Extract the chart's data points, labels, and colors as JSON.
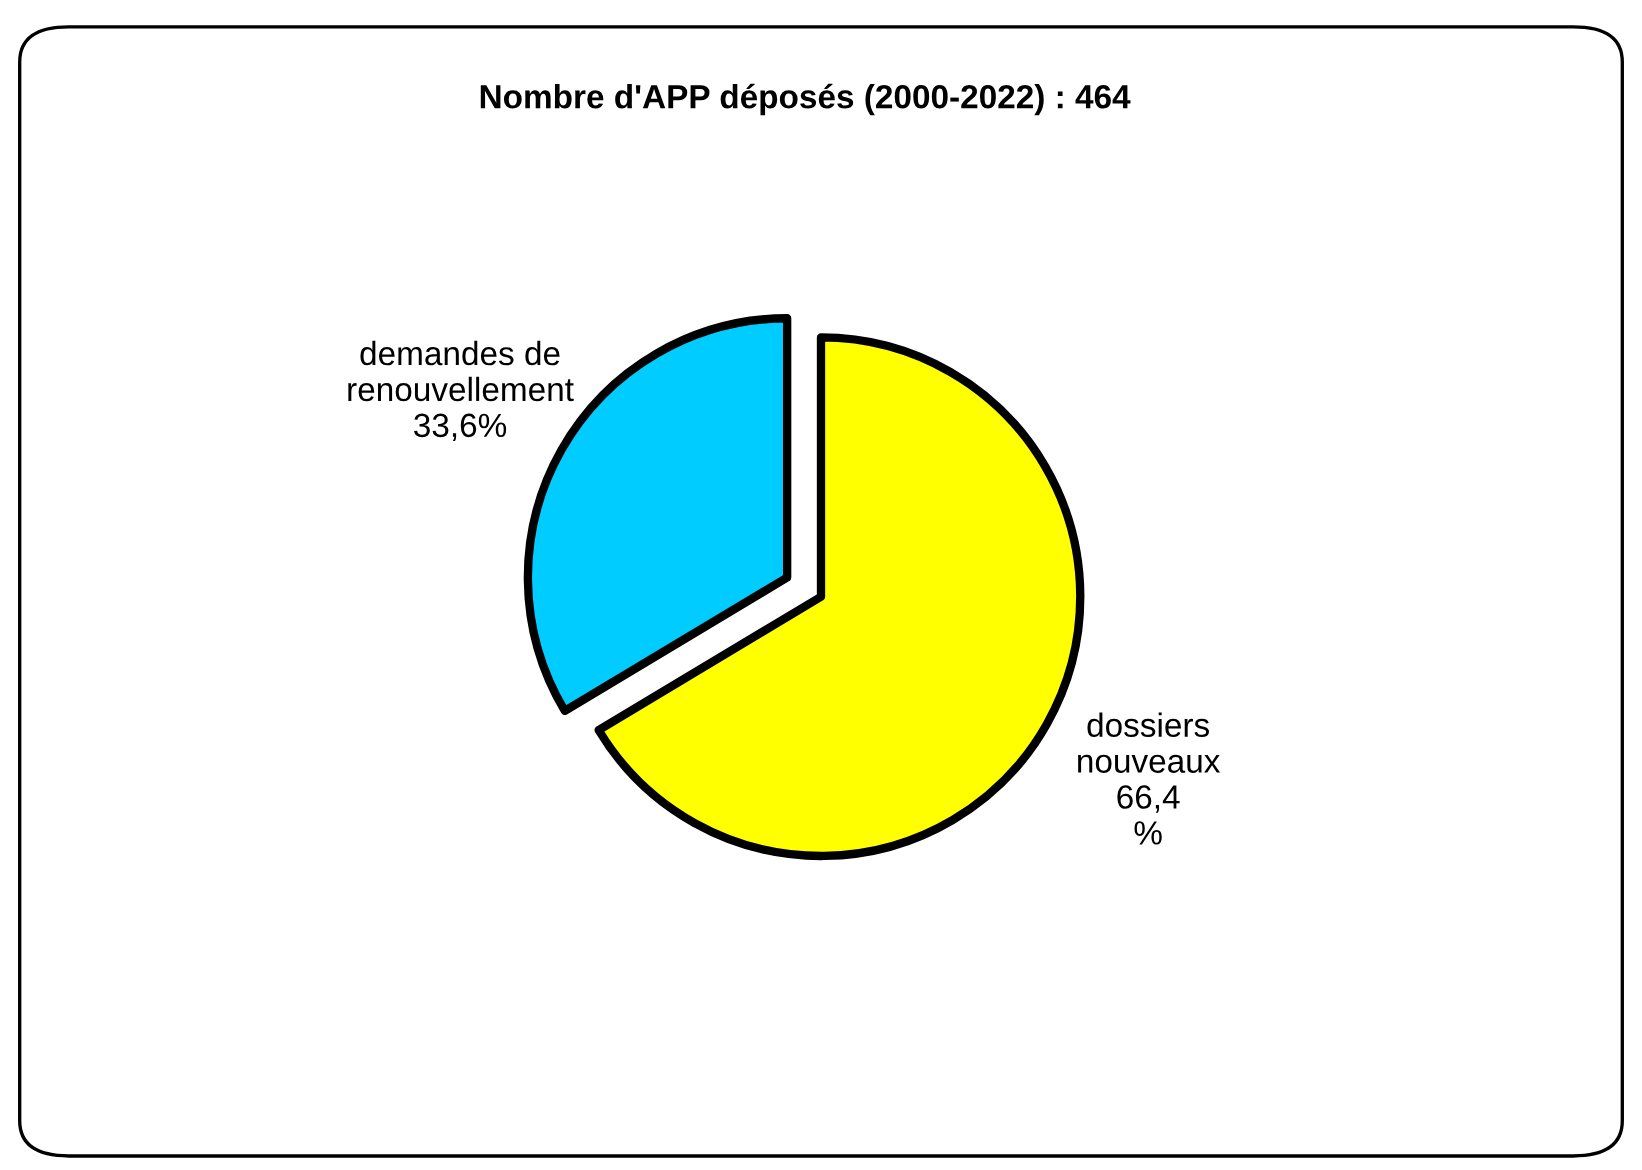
{
  "chart_data": {
    "type": "pie",
    "title": "Nombre d'APP déposés (2000-2022) : 464",
    "categories": [
      "dossiers\nnouveaux",
      "demandes de\nrenouvellement"
    ],
    "values": [
      66.4,
      33.6
    ],
    "value_labels": [
      "66,4\n%",
      "33,6%"
    ],
    "colors": [
      "#ffff00",
      "#00ccff"
    ],
    "legend": false
  }
}
